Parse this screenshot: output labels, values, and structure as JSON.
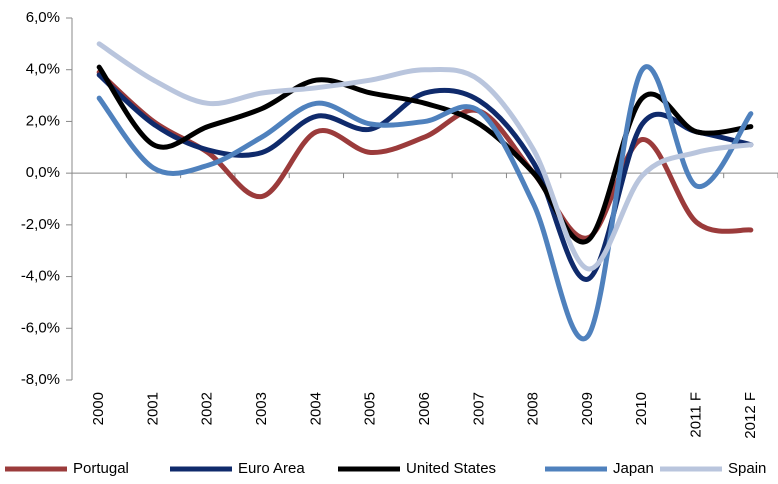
{
  "chart_data": {
    "type": "line",
    "categories": [
      "2000",
      "2001",
      "2002",
      "2003",
      "2004",
      "2005",
      "2006",
      "2007",
      "2008",
      "2009",
      "2010",
      "2011 F",
      "2012 F"
    ],
    "series": [
      {
        "name": "Portugal",
        "color": "#9b3b3b",
        "values": [
          3.9,
          2.0,
          0.8,
          -0.9,
          1.6,
          0.8,
          1.4,
          2.4,
          0.0,
          -2.5,
          1.3,
          -1.9,
          -2.2
        ]
      },
      {
        "name": "Euro Area",
        "color": "#0f2a6b",
        "values": [
          3.8,
          1.9,
          0.9,
          0.8,
          2.2,
          1.7,
          3.1,
          2.8,
          0.4,
          -4.1,
          1.9,
          1.6,
          1.1
        ]
      },
      {
        "name": "United States",
        "color": "#000000",
        "values": [
          4.1,
          1.1,
          1.8,
          2.5,
          3.6,
          3.1,
          2.7,
          1.9,
          0.0,
          -2.6,
          2.9,
          1.6,
          1.8
        ]
      },
      {
        "name": "Japan",
        "color": "#4f81bd",
        "values": [
          2.9,
          0.2,
          0.3,
          1.4,
          2.7,
          1.9,
          2.0,
          2.4,
          -1.2,
          -6.3,
          4.0,
          -0.5,
          2.3
        ]
      },
      {
        "name": "Spain",
        "color": "#b9c5dd",
        "values": [
          5.0,
          3.6,
          2.7,
          3.1,
          3.3,
          3.6,
          4.0,
          3.6,
          0.9,
          -3.7,
          -0.1,
          0.8,
          1.1
        ]
      }
    ],
    "ylim": [
      -8,
      6
    ],
    "yticks": [
      {
        "value": -8,
        "label": "-8,0%"
      },
      {
        "value": -6,
        "label": "-6,0%"
      },
      {
        "value": -4,
        "label": "-4,0%"
      },
      {
        "value": -2,
        "label": "-2,0%"
      },
      {
        "value": 0,
        "label": "0,0%"
      },
      {
        "value": 2,
        "label": "2,0%"
      },
      {
        "value": 4,
        "label": "4,0%"
      },
      {
        "value": 6,
        "label": "6,0%"
      }
    ],
    "grid": false,
    "legend": "bottom"
  }
}
